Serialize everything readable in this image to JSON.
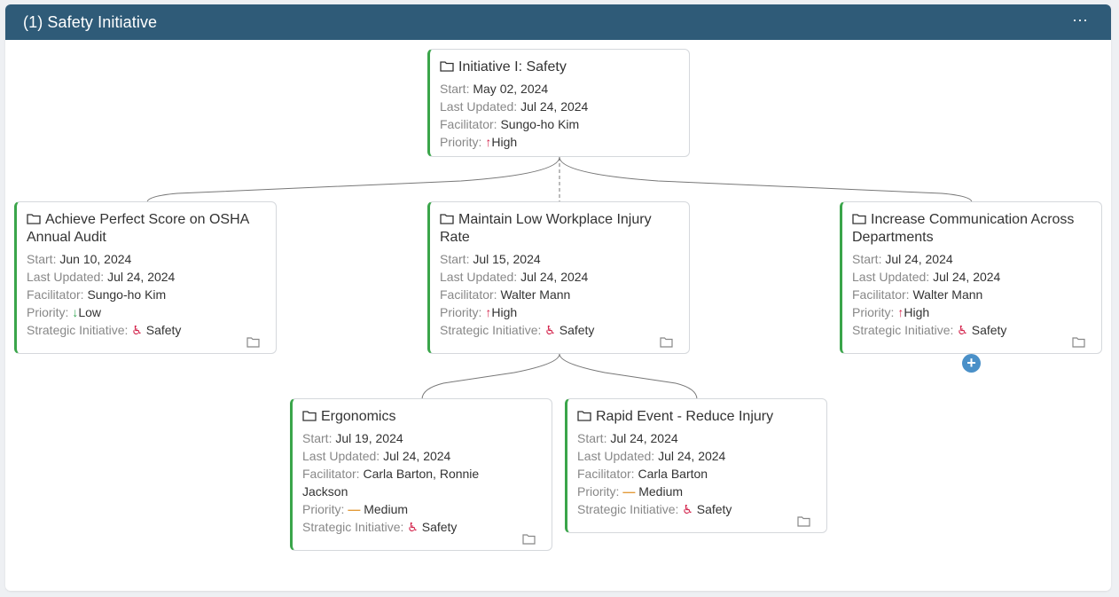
{
  "panel": {
    "title": "(1) Safety Initiative",
    "menu_label": "···"
  },
  "labels": {
    "start": "Start:",
    "last_updated": "Last Updated:",
    "facilitator": "Facilitator:",
    "priority": "Priority:",
    "strategic": "Strategic Initiative:"
  },
  "colors": {
    "header": "#2f5b78",
    "accent": "#3aa54a",
    "priority_high": "#d3234b",
    "priority_low": "#34a853",
    "priority_medium": "#e39b3a",
    "add_button": "#4a90c8"
  },
  "cards": {
    "root": {
      "title": "Initiative I: Safety",
      "start": "May 02, 2024",
      "last_updated": "Jul 24, 2024",
      "facilitator": "Sungo-ho Kim",
      "priority": "High",
      "priority_icon": "arrow-up-icon"
    },
    "osha": {
      "title": "Achieve Perfect Score on OSHA Annual Audit",
      "start": "Jun 10, 2024",
      "last_updated": "Jul 24, 2024",
      "facilitator": "Sungo-ho Kim",
      "priority": "Low",
      "priority_icon": "arrow-down-icon",
      "strategic": "Safety"
    },
    "injury": {
      "title": "Maintain Low Workplace Injury Rate",
      "start": "Jul 15, 2024",
      "last_updated": "Jul 24, 2024",
      "facilitator": "Walter Mann",
      "priority": "High",
      "priority_icon": "arrow-up-icon",
      "strategic": "Safety"
    },
    "comm": {
      "title": "Increase Communication Across Departments",
      "start": "Jul 24, 2024",
      "last_updated": "Jul 24, 2024",
      "facilitator": "Walter Mann",
      "priority": "High",
      "priority_icon": "arrow-up-icon",
      "strategic": "Safety"
    },
    "ergo": {
      "title": "Ergonomics",
      "start": "Jul 19, 2024",
      "last_updated": "Jul 24, 2024",
      "facilitator": "Carla Barton, Ronnie Jackson",
      "priority": "Medium",
      "priority_icon": "dash-icon",
      "strategic": "Safety"
    },
    "rapid": {
      "title": "Rapid Event - Reduce Injury",
      "start": "Jul 24, 2024",
      "last_updated": "Jul 24, 2024",
      "facilitator": "Carla Barton",
      "priority": "Medium",
      "priority_icon": "dash-icon",
      "strategic": "Safety"
    }
  },
  "add_label": "+"
}
